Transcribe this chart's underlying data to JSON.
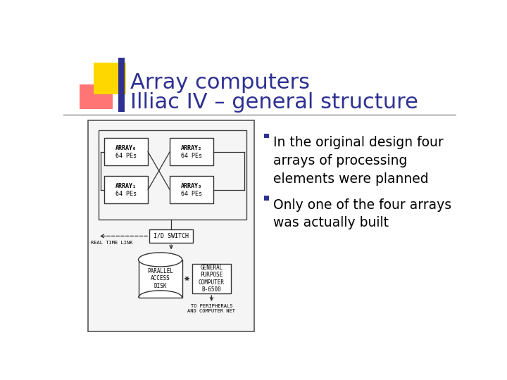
{
  "title_line1": "Array computers",
  "title_line2": "Illiac IV – general structure",
  "title_color": "#2E3192",
  "title_fontsize": 22,
  "bg_color": "#FFFFFF",
  "bullet1": "In the original design four\narrays of processing\nelements were planned",
  "bullet2": "Only one of the four arrays\nwas actually built",
  "bullet_color": "#2E3192",
  "bullet_text_color": "#000000",
  "bullet_fontsize": 13.5,
  "accent_yellow": "#FFD700",
  "accent_red": "#FF6666",
  "accent_blue": "#2E3192",
  "sep_color": "#888888"
}
